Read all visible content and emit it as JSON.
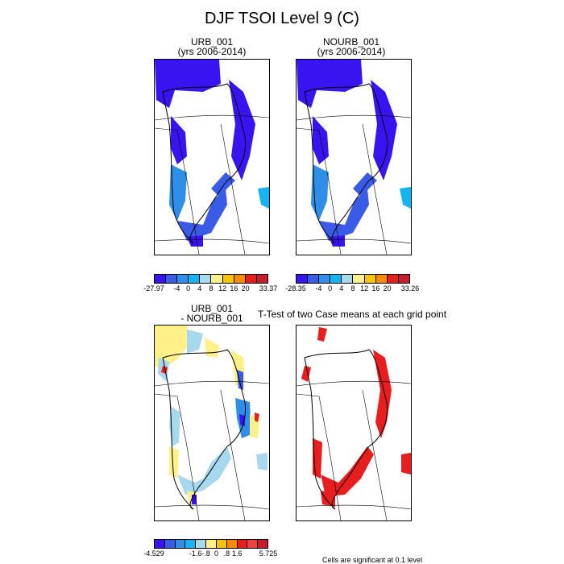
{
  "figure": {
    "title": "DJF TSOI Level 9 (C)",
    "panels": [
      {
        "title_line1": "URB_001",
        "title_line2": "(yrs 2006-2014)",
        "fill": "blue-cold"
      },
      {
        "title_line1": "NOURB_001",
        "title_line2": "(yrs 2006-2014)",
        "fill": "blue-cold"
      },
      {
        "title_line1": "URB_001",
        "title_line2": "- NOURB_001",
        "fill": "difference"
      },
      {
        "title_line1": "T-Test of two Case means at each grid point",
        "title_line2": "",
        "fill": "significance"
      }
    ],
    "colorbars": [
      {
        "labels": [
          "-27.97",
          "-4",
          "0",
          "4",
          "8",
          "12",
          "16",
          "20",
          "33.37"
        ],
        "colors": [
          "#3a14f0",
          "#3a5ae8",
          "#2f8ee8",
          "#16b4f0",
          "#a8d8ee",
          "#fff08a",
          "#fbc200",
          "#f88a00",
          "#e81e1e",
          "#c41e2e"
        ]
      },
      {
        "labels": [
          "-28.35",
          "-4",
          "0",
          "4",
          "8",
          "12",
          "16",
          "20",
          "33.26"
        ],
        "colors": [
          "#3a14f0",
          "#3a5ae8",
          "#2f8ee8",
          "#16b4f0",
          "#a8d8ee",
          "#fff08a",
          "#fbc200",
          "#f88a00",
          "#e81e1e",
          "#c41e2e"
        ]
      },
      {
        "labels": [
          "-4.529",
          "-1.6",
          "-.8",
          "0",
          ".8",
          "1.6",
          "5.725"
        ],
        "colors": [
          "#3a14f0",
          "#3a5ae8",
          "#2f8ee8",
          "#16b4f0",
          "#a8d8ee",
          "#fff08a",
          "#fbc200",
          "#f88a00",
          "#e81e1e",
          "#f04040",
          "#c41e2e"
        ]
      }
    ],
    "footnote": "Cells are significant at 0.1 level"
  }
}
